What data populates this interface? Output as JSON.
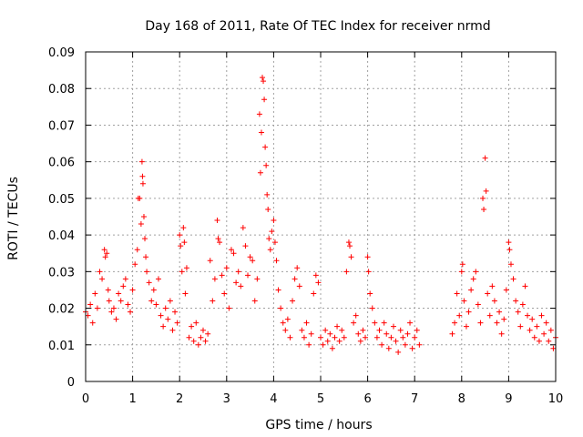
{
  "chart_data": {
    "type": "scatter",
    "title": "Day 168 of 2011, Rate Of TEC Index for receiver nrmd",
    "xlabel": "GPS time / hours",
    "ylabel": "ROTI / TECUs",
    "xlim": [
      0,
      10
    ],
    "ylim": [
      0,
      0.09
    ],
    "xticks": [
      "0",
      "1",
      "2",
      "3",
      "4",
      "5",
      "6",
      "7",
      "8",
      "9",
      "10"
    ],
    "yticks": [
      "0",
      "0.01",
      "0.02",
      "0.03",
      "0.04",
      "0.05",
      "0.06",
      "0.07",
      "0.08",
      "0.09"
    ],
    "grid": true,
    "marker": "+",
    "color": "#ff0000",
    "series": [
      {
        "name": "ROTI",
        "points": [
          [
            0.0,
            0.019
          ],
          [
            0.05,
            0.018
          ],
          [
            0.1,
            0.021
          ],
          [
            0.15,
            0.016
          ],
          [
            0.2,
            0.024
          ],
          [
            0.25,
            0.02
          ],
          [
            0.3,
            0.03
          ],
          [
            0.35,
            0.028
          ],
          [
            0.4,
            0.036
          ],
          [
            0.42,
            0.034
          ],
          [
            0.45,
            0.035
          ],
          [
            0.48,
            0.025
          ],
          [
            0.5,
            0.022
          ],
          [
            0.55,
            0.019
          ],
          [
            0.6,
            0.02
          ],
          [
            0.65,
            0.017
          ],
          [
            0.7,
            0.024
          ],
          [
            0.75,
            0.022
          ],
          [
            0.8,
            0.026
          ],
          [
            0.85,
            0.028
          ],
          [
            0.9,
            0.021
          ],
          [
            0.95,
            0.019
          ],
          [
            1.0,
            0.025
          ],
          [
            1.05,
            0.032
          ],
          [
            1.1,
            0.036
          ],
          [
            1.12,
            0.05
          ],
          [
            1.15,
            0.05
          ],
          [
            1.18,
            0.043
          ],
          [
            1.2,
            0.06
          ],
          [
            1.21,
            0.056
          ],
          [
            1.22,
            0.054
          ],
          [
            1.24,
            0.045
          ],
          [
            1.26,
            0.039
          ],
          [
            1.28,
            0.034
          ],
          [
            1.3,
            0.03
          ],
          [
            1.35,
            0.027
          ],
          [
            1.4,
            0.022
          ],
          [
            1.45,
            0.025
          ],
          [
            1.5,
            0.021
          ],
          [
            1.55,
            0.028
          ],
          [
            1.6,
            0.018
          ],
          [
            1.65,
            0.015
          ],
          [
            1.7,
            0.02
          ],
          [
            1.75,
            0.017
          ],
          [
            1.8,
            0.022
          ],
          [
            1.85,
            0.014
          ],
          [
            1.9,
            0.019
          ],
          [
            1.95,
            0.016
          ],
          [
            2.0,
            0.04
          ],
          [
            2.02,
            0.037
          ],
          [
            2.05,
            0.03
          ],
          [
            2.08,
            0.042
          ],
          [
            2.1,
            0.038
          ],
          [
            2.12,
            0.024
          ],
          [
            2.15,
            0.031
          ],
          [
            2.2,
            0.012
          ],
          [
            2.25,
            0.015
          ],
          [
            2.3,
            0.011
          ],
          [
            2.35,
            0.016
          ],
          [
            2.4,
            0.01
          ],
          [
            2.45,
            0.012
          ],
          [
            2.5,
            0.014
          ],
          [
            2.55,
            0.011
          ],
          [
            2.6,
            0.013
          ],
          [
            2.65,
            0.033
          ],
          [
            2.7,
            0.022
          ],
          [
            2.75,
            0.028
          ],
          [
            2.8,
            0.044
          ],
          [
            2.82,
            0.039
          ],
          [
            2.85,
            0.038
          ],
          [
            2.9,
            0.029
          ],
          [
            2.95,
            0.024
          ],
          [
            3.0,
            0.031
          ],
          [
            3.05,
            0.02
          ],
          [
            3.1,
            0.036
          ],
          [
            3.15,
            0.035
          ],
          [
            3.2,
            0.027
          ],
          [
            3.25,
            0.03
          ],
          [
            3.3,
            0.026
          ],
          [
            3.35,
            0.042
          ],
          [
            3.4,
            0.037
          ],
          [
            3.45,
            0.029
          ],
          [
            3.5,
            0.034
          ],
          [
            3.55,
            0.033
          ],
          [
            3.6,
            0.022
          ],
          [
            3.65,
            0.028
          ],
          [
            3.7,
            0.073
          ],
          [
            3.72,
            0.057
          ],
          [
            3.74,
            0.068
          ],
          [
            3.76,
            0.083
          ],
          [
            3.78,
            0.082
          ],
          [
            3.8,
            0.077
          ],
          [
            3.82,
            0.064
          ],
          [
            3.84,
            0.059
          ],
          [
            3.86,
            0.051
          ],
          [
            3.88,
            0.047
          ],
          [
            3.9,
            0.039
          ],
          [
            3.93,
            0.036
          ],
          [
            3.96,
            0.041
          ],
          [
            4.0,
            0.044
          ],
          [
            4.03,
            0.038
          ],
          [
            4.06,
            0.033
          ],
          [
            4.1,
            0.025
          ],
          [
            4.15,
            0.02
          ],
          [
            4.2,
            0.016
          ],
          [
            4.25,
            0.014
          ],
          [
            4.3,
            0.017
          ],
          [
            4.35,
            0.012
          ],
          [
            4.4,
            0.022
          ],
          [
            4.45,
            0.028
          ],
          [
            4.5,
            0.031
          ],
          [
            4.55,
            0.026
          ],
          [
            4.6,
            0.014
          ],
          [
            4.65,
            0.012
          ],
          [
            4.7,
            0.016
          ],
          [
            4.75,
            0.01
          ],
          [
            4.8,
            0.013
          ],
          [
            4.85,
            0.024
          ],
          [
            4.9,
            0.029
          ],
          [
            4.95,
            0.027
          ],
          [
            5.0,
            0.012
          ],
          [
            5.05,
            0.01
          ],
          [
            5.1,
            0.014
          ],
          [
            5.15,
            0.011
          ],
          [
            5.2,
            0.013
          ],
          [
            5.25,
            0.009
          ],
          [
            5.3,
            0.012
          ],
          [
            5.35,
            0.015
          ],
          [
            5.4,
            0.011
          ],
          [
            5.45,
            0.014
          ],
          [
            5.5,
            0.012
          ],
          [
            5.55,
            0.03
          ],
          [
            5.6,
            0.038
          ],
          [
            5.62,
            0.037
          ],
          [
            5.65,
            0.034
          ],
          [
            5.7,
            0.016
          ],
          [
            5.75,
            0.018
          ],
          [
            5.8,
            0.013
          ],
          [
            5.85,
            0.011
          ],
          [
            5.9,
            0.014
          ],
          [
            5.95,
            0.012
          ],
          [
            6.0,
            0.034
          ],
          [
            6.02,
            0.03
          ],
          [
            6.05,
            0.024
          ],
          [
            6.1,
            0.02
          ],
          [
            6.15,
            0.016
          ],
          [
            6.2,
            0.012
          ],
          [
            6.25,
            0.014
          ],
          [
            6.3,
            0.01
          ],
          [
            6.35,
            0.016
          ],
          [
            6.4,
            0.013
          ],
          [
            6.45,
            0.009
          ],
          [
            6.5,
            0.012
          ],
          [
            6.55,
            0.015
          ],
          [
            6.6,
            0.011
          ],
          [
            6.65,
            0.008
          ],
          [
            6.7,
            0.014
          ],
          [
            6.75,
            0.012
          ],
          [
            6.8,
            0.01
          ],
          [
            6.85,
            0.013
          ],
          [
            6.9,
            0.016
          ],
          [
            6.95,
            0.009
          ],
          [
            7.0,
            0.012
          ],
          [
            7.05,
            0.014
          ],
          [
            7.1,
            0.01
          ],
          [
            7.8,
            0.013
          ],
          [
            7.85,
            0.016
          ],
          [
            7.9,
            0.024
          ],
          [
            7.95,
            0.018
          ],
          [
            8.0,
            0.03
          ],
          [
            8.02,
            0.032
          ],
          [
            8.05,
            0.022
          ],
          [
            8.1,
            0.015
          ],
          [
            8.15,
            0.019
          ],
          [
            8.2,
            0.025
          ],
          [
            8.25,
            0.028
          ],
          [
            8.3,
            0.03
          ],
          [
            8.35,
            0.021
          ],
          [
            8.4,
            0.016
          ],
          [
            8.45,
            0.05
          ],
          [
            8.47,
            0.047
          ],
          [
            8.5,
            0.061
          ],
          [
            8.52,
            0.052
          ],
          [
            8.55,
            0.024
          ],
          [
            8.6,
            0.018
          ],
          [
            8.65,
            0.026
          ],
          [
            8.7,
            0.022
          ],
          [
            8.75,
            0.016
          ],
          [
            8.8,
            0.019
          ],
          [
            8.85,
            0.013
          ],
          [
            8.9,
            0.017
          ],
          [
            8.95,
            0.025
          ],
          [
            9.0,
            0.038
          ],
          [
            9.02,
            0.036
          ],
          [
            9.05,
            0.032
          ],
          [
            9.1,
            0.028
          ],
          [
            9.15,
            0.022
          ],
          [
            9.2,
            0.019
          ],
          [
            9.25,
            0.015
          ],
          [
            9.3,
            0.021
          ],
          [
            9.35,
            0.026
          ],
          [
            9.4,
            0.018
          ],
          [
            9.45,
            0.014
          ],
          [
            9.5,
            0.017
          ],
          [
            9.55,
            0.012
          ],
          [
            9.6,
            0.015
          ],
          [
            9.65,
            0.011
          ],
          [
            9.7,
            0.018
          ],
          [
            9.75,
            0.013
          ],
          [
            9.8,
            0.016
          ],
          [
            9.85,
            0.011
          ],
          [
            9.9,
            0.014
          ],
          [
            9.95,
            0.009
          ],
          [
            10.0,
            0.012
          ]
        ]
      }
    ]
  }
}
